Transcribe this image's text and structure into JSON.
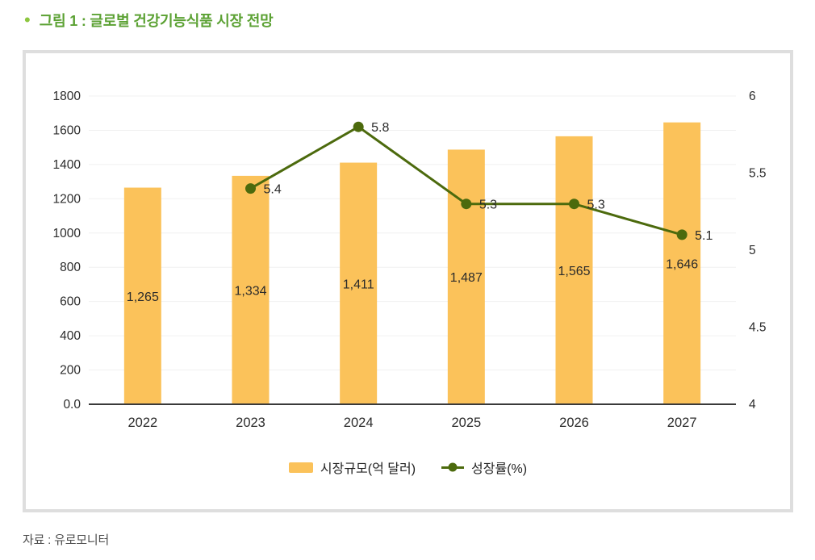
{
  "page": {
    "title_bullet": "•",
    "title": "그림 1 : 글로벌 건강기능식품 시장 전망",
    "source": "자료 : 유로모니터"
  },
  "colors": {
    "title_green": "#5ba133",
    "bullet_green": "#8dc63f",
    "bar_yellow": "#fbc25a",
    "line_green": "#4c6a0d",
    "grid_gray": "#f0f0f0",
    "axis_dark": "#3a3a3a",
    "tick_text": "#2b2b2b",
    "card_border": "#dedede",
    "source_text": "#4d4d4d"
  },
  "chart_data": {
    "type": "bar",
    "subtype": "bar+line combo, dual axis",
    "categories": [
      "2022",
      "2023",
      "2024",
      "2025",
      "2026",
      "2027"
    ],
    "series": [
      {
        "name": "시장규모(억 달러)",
        "type": "bar",
        "axis": "left",
        "values": [
          1265,
          1334,
          1411,
          1487,
          1565,
          1646
        ],
        "labels": [
          "1,265",
          "1,334",
          "1,411",
          "1,487",
          "1,565",
          "1,646"
        ]
      },
      {
        "name": "성장률(%)",
        "type": "line",
        "axis": "right",
        "values": [
          null,
          5.4,
          5.8,
          5.3,
          5.3,
          5.1
        ],
        "labels": [
          "",
          "5.4",
          "5.8",
          "5.3",
          "5.3",
          "5.1"
        ]
      }
    ],
    "left_axis": {
      "min": 0,
      "max": 1800,
      "tick_step": 200,
      "tick_labels": [
        "0.0",
        "200",
        "400",
        "600",
        "800",
        "1000",
        "1200",
        "1400",
        "1600",
        "1800"
      ]
    },
    "right_axis": {
      "min": 4,
      "max": 6,
      "tick_labels": [
        "4",
        "4.5",
        "5",
        "5.5",
        "6"
      ]
    },
    "grid": true,
    "legend_position": "bottom"
  }
}
